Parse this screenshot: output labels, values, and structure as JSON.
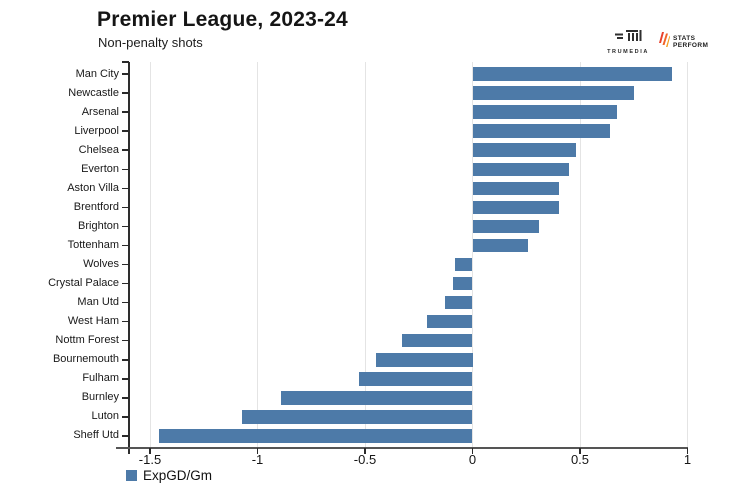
{
  "header": {
    "title": "Premier League, 2023-24",
    "subtitle": "Non-penalty shots"
  },
  "branding": {
    "trumedia_label": "TRUMEDIA",
    "statsperform_line1": "STATS",
    "statsperform_line2": "PERFORM"
  },
  "legend": {
    "label": "ExpGD/Gm"
  },
  "colors": {
    "bar": "#4d7aa8",
    "axis": "#2a2a2a",
    "grid": "#e4e4e4",
    "statsperform_red": "#e8412c",
    "statsperform_orange1": "#f06428",
    "statsperform_orange2": "#f59d1f"
  },
  "chart_data": {
    "type": "bar",
    "orientation": "horizontal",
    "title": "Premier League, 2023-24",
    "subtitle": "Non-penalty shots",
    "series_name": "ExpGD/Gm",
    "categories": [
      "Man City",
      "Newcastle",
      "Arsenal",
      "Liverpool",
      "Chelsea",
      "Everton",
      "Aston Villa",
      "Brentford",
      "Brighton",
      "Tottenham",
      "Wolves",
      "Crystal Palace",
      "Man Utd",
      "West Ham",
      "Nottm Forest",
      "Bournemouth",
      "Fulham",
      "Burnley",
      "Luton",
      "Sheff Utd"
    ],
    "values": [
      0.93,
      0.75,
      0.67,
      0.64,
      0.48,
      0.45,
      0.4,
      0.4,
      0.31,
      0.26,
      -0.08,
      -0.09,
      -0.13,
      -0.21,
      -0.33,
      -0.45,
      -0.53,
      -0.89,
      -1.07,
      -1.46
    ],
    "x_ticks": [
      -1.5,
      -1,
      -0.5,
      0,
      0.5,
      1
    ],
    "x_tick_labels": [
      "-1.5",
      "-1",
      "-0.5",
      "0",
      "0.5",
      "1"
    ],
    "xlim": [
      -1.65,
      1.0
    ],
    "grid": true,
    "legend_position": "bottom-left",
    "bar_color": "#4d7aa8"
  }
}
